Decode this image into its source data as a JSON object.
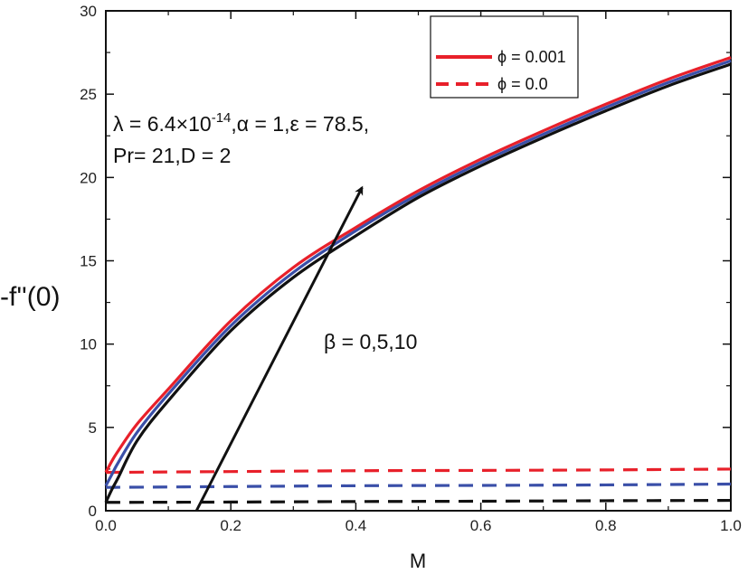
{
  "chart_data": {
    "type": "line",
    "title": "",
    "xlabel": "M",
    "ylabel": "-f''(0)",
    "xlim": [
      0.0,
      1.0
    ],
    "ylim": [
      0,
      30
    ],
    "x_ticks": [
      0.0,
      0.2,
      0.4,
      0.6,
      0.8,
      1.0
    ],
    "x_tick_labels": [
      "0.0",
      "0.2",
      "0.4",
      "0.6",
      "0.8",
      "1.0"
    ],
    "y_ticks": [
      0,
      5,
      10,
      15,
      20,
      25,
      30
    ],
    "y_tick_labels": [
      "0",
      "5",
      "10",
      "15",
      "20",
      "25",
      "30"
    ],
    "grid": false,
    "legend_position": "top-right",
    "legend": [
      {
        "label": "ϕ = 0.001",
        "style": "solid",
        "color": "#e8202a"
      },
      {
        "label": "ϕ = 0.0",
        "style": "dashed",
        "color": "#e8202a"
      }
    ],
    "series": [
      {
        "name": "ϕ = 0.001, β = 0",
        "style": "solid",
        "color": "#e8202a",
        "x": [
          0.0,
          0.01,
          0.02,
          0.05,
          0.1,
          0.2,
          0.3,
          0.4,
          0.5,
          0.6,
          0.7,
          0.8,
          0.9,
          1.0
        ],
        "y": [
          2.3,
          3.0,
          3.6,
          5.2,
          7.3,
          11.4,
          14.6,
          17.0,
          19.2,
          21.1,
          22.8,
          24.4,
          25.9,
          27.2
        ]
      },
      {
        "name": "ϕ = 0.001, β = 5",
        "style": "solid",
        "color": "#3a4fa8",
        "x": [
          0.0,
          0.01,
          0.02,
          0.05,
          0.1,
          0.2,
          0.3,
          0.4,
          0.5,
          0.6,
          0.7,
          0.8,
          0.9,
          1.0
        ],
        "y": [
          1.5,
          2.2,
          2.9,
          4.7,
          7.0,
          11.1,
          14.3,
          16.8,
          19.0,
          20.9,
          22.6,
          24.2,
          25.7,
          27.0
        ]
      },
      {
        "name": "ϕ = 0.001, β = 10",
        "style": "solid",
        "color": "#111111",
        "x": [
          0.0,
          0.01,
          0.02,
          0.05,
          0.1,
          0.2,
          0.3,
          0.4,
          0.5,
          0.6,
          0.7,
          0.8,
          0.9,
          1.0
        ],
        "y": [
          0.5,
          1.3,
          2.0,
          4.2,
          6.6,
          10.8,
          14.0,
          16.5,
          18.8,
          20.7,
          22.4,
          24.0,
          25.5,
          26.8
        ]
      },
      {
        "name": "ϕ = 0.0, β = 0",
        "style": "dashed",
        "color": "#e8202a",
        "x": [
          0.0,
          0.2,
          0.4,
          0.6,
          0.8,
          1.0
        ],
        "y": [
          2.3,
          2.35,
          2.4,
          2.42,
          2.45,
          2.5
        ]
      },
      {
        "name": "ϕ = 0.0, β = 5",
        "style": "dashed",
        "color": "#3a4fa8",
        "x": [
          0.0,
          0.2,
          0.4,
          0.6,
          0.8,
          1.0
        ],
        "y": [
          1.4,
          1.45,
          1.5,
          1.52,
          1.55,
          1.6
        ]
      },
      {
        "name": "ϕ = 0.0, β = 10",
        "style": "dashed",
        "color": "#111111",
        "x": [
          0.0,
          0.2,
          0.4,
          0.6,
          0.8,
          1.0
        ],
        "y": [
          0.5,
          0.52,
          0.55,
          0.57,
          0.6,
          0.62
        ]
      }
    ],
    "annotations": {
      "params_line1_prefix": "λ = 6.4×10",
      "params_line1_exponent": "-14",
      "params_line1_suffix": ",α = 1,ε = 78.5,",
      "params_line2": "Pr= 21,D = 2",
      "beta_label": "β = 0,5,10",
      "arrow": {
        "from": [
          0.145,
          0.0
        ],
        "to": [
          0.41,
          19.4
        ]
      }
    }
  }
}
